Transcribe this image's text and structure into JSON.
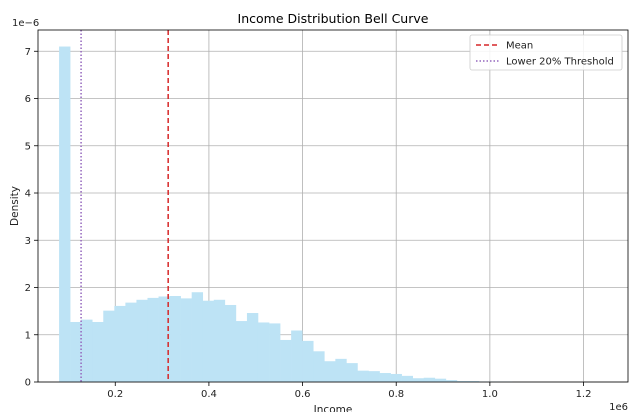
{
  "chart_data": {
    "type": "bar",
    "title": "Income Distribution Bell Curve",
    "xlabel": "Income",
    "ylabel": "Density",
    "x_offset_label": "1e6",
    "y_offset_label": "1e−6",
    "xlim": [
      0.035,
      1.295
    ],
    "ylim": [
      0,
      7.45
    ],
    "xticks": [
      0.2,
      0.4,
      0.6,
      0.8,
      1.0,
      1.2
    ],
    "xtick_labels": [
      "0.2",
      "0.4",
      "0.6",
      "0.8",
      "1.0",
      "1.2"
    ],
    "yticks": [
      0,
      1,
      2,
      3,
      4,
      5,
      6,
      7
    ],
    "ytick_labels": [
      "0",
      "1",
      "2",
      "3",
      "4",
      "5",
      "6",
      "7"
    ],
    "grid": true,
    "bar_color": "#bde3f5",
    "bin_width": 0.0236,
    "bin_start": 0.08,
    "values": [
      7.1,
      1.27,
      1.32,
      1.27,
      1.51,
      1.61,
      1.68,
      1.74,
      1.78,
      1.81,
      1.82,
      1.77,
      1.9,
      1.72,
      1.74,
      1.63,
      1.29,
      1.46,
      1.26,
      1.24,
      0.89,
      1.09,
      0.87,
      0.65,
      0.44,
      0.49,
      0.4,
      0.24,
      0.23,
      0.19,
      0.17,
      0.13,
      0.08,
      0.09,
      0.07,
      0.04,
      0.02,
      0.02,
      0.01,
      0.01,
      0.01,
      0.0,
      0.0,
      0.0,
      0.0,
      0.0,
      0.0,
      0.0,
      0.0,
      0.0,
      0.0,
      0.0,
      0.0
    ],
    "mean_line": {
      "x": 0.313,
      "color": "#d62728",
      "style": "dashed",
      "label": "Mean"
    },
    "threshold_line": {
      "x": 0.127,
      "color": "#9467bd",
      "style": "dotted",
      "label": "Lower 20% Threshold"
    },
    "legend_position": "top-right"
  }
}
